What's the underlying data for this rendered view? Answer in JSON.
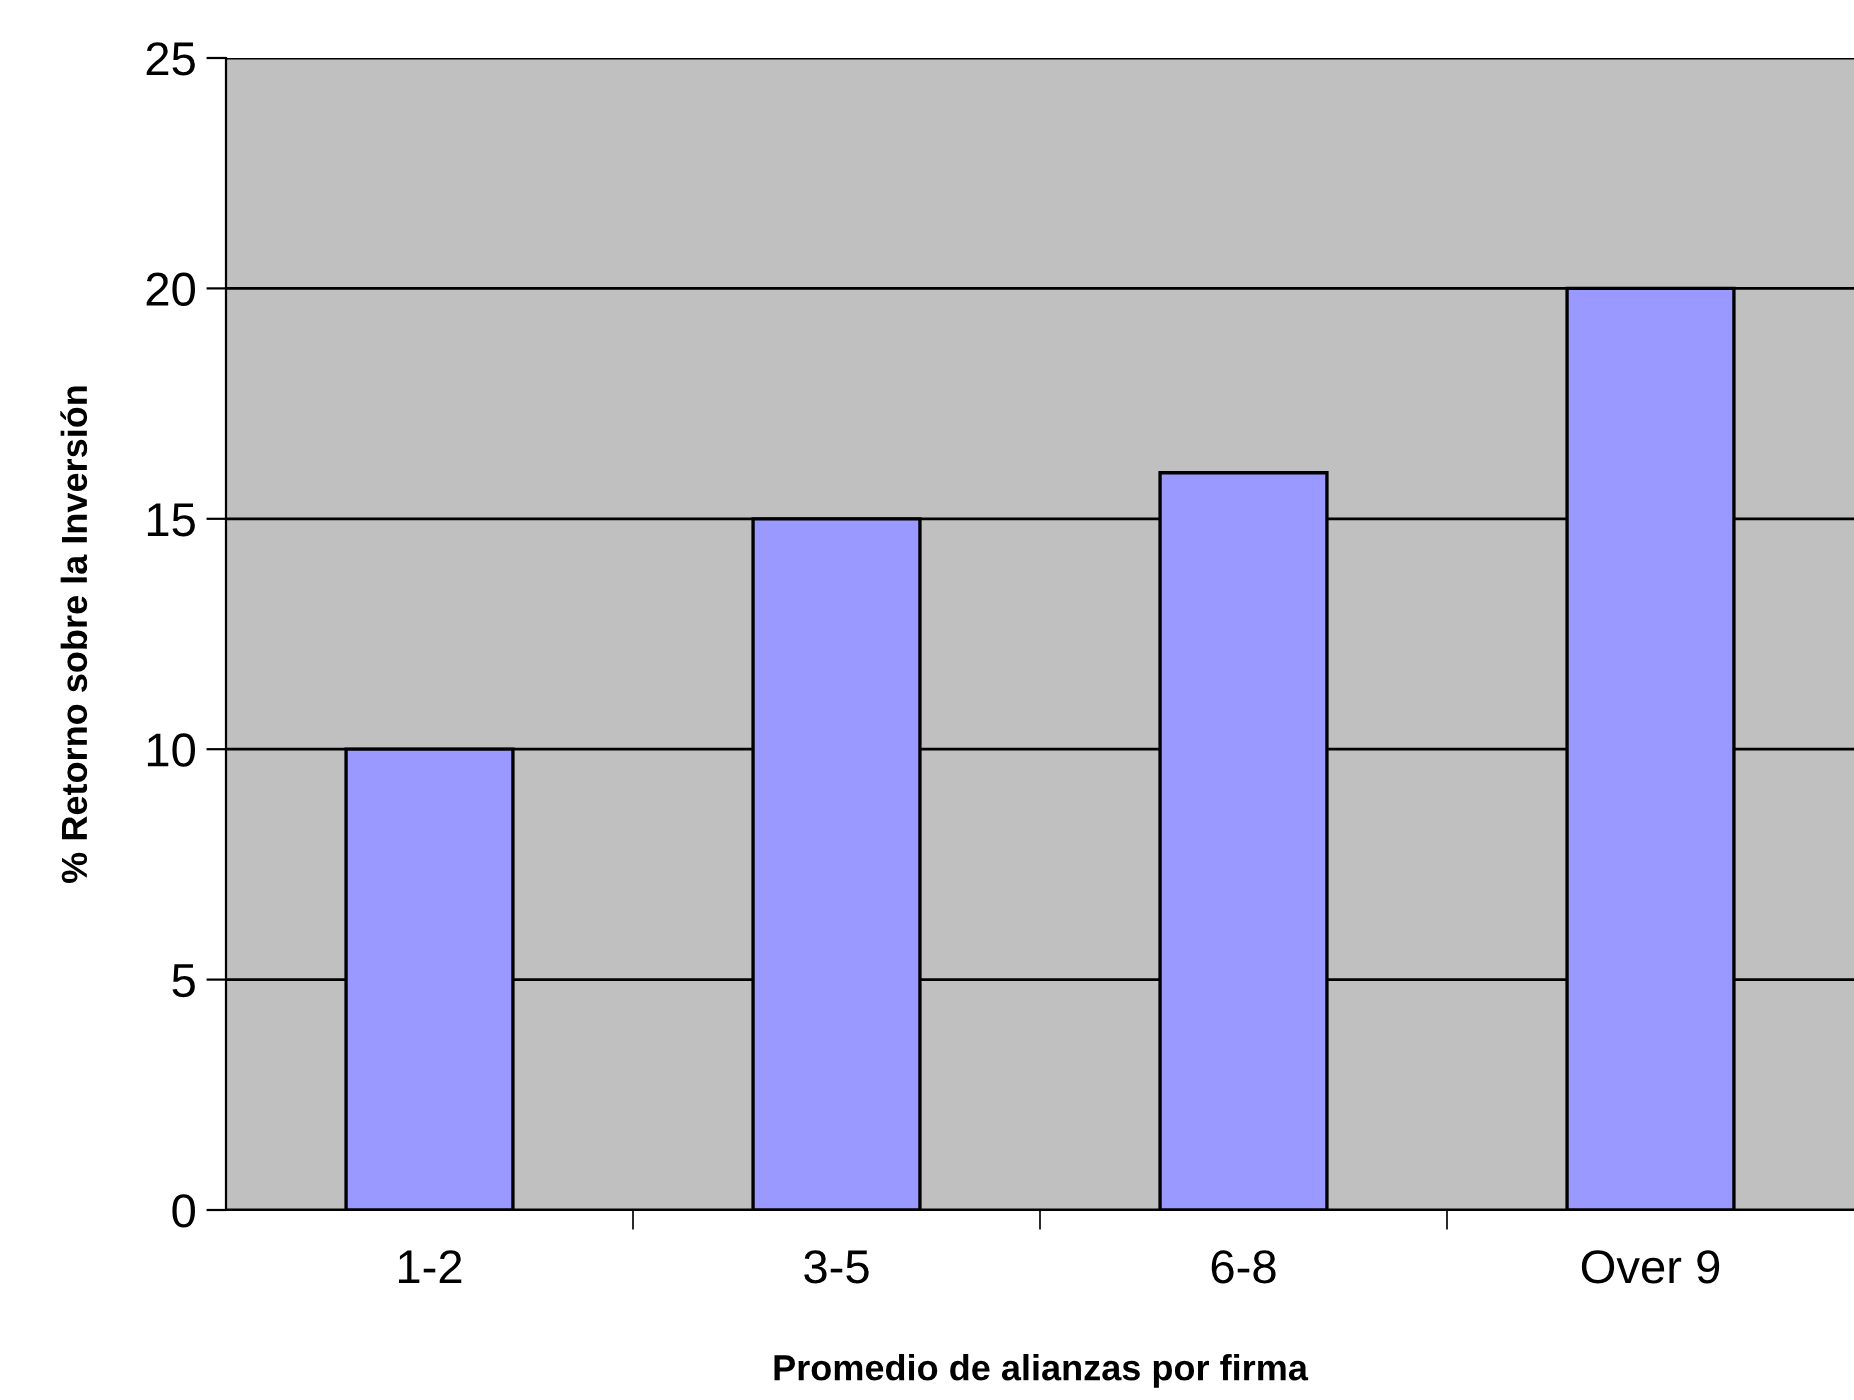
{
  "chart_data": {
    "type": "bar",
    "xlabel": "Promedio de alianzas por firma",
    "ylabel": "% Retorno sobre la Inversión",
    "categories": [
      "1-2",
      "3-5",
      "6-8",
      "Over 9"
    ],
    "values": [
      10,
      15,
      16,
      20
    ],
    "color": "#9999ff",
    "ylim": [
      0,
      25
    ],
    "yticks": [
      0,
      5,
      10,
      15,
      20,
      25
    ],
    "grid": "y",
    "legend": false
  }
}
